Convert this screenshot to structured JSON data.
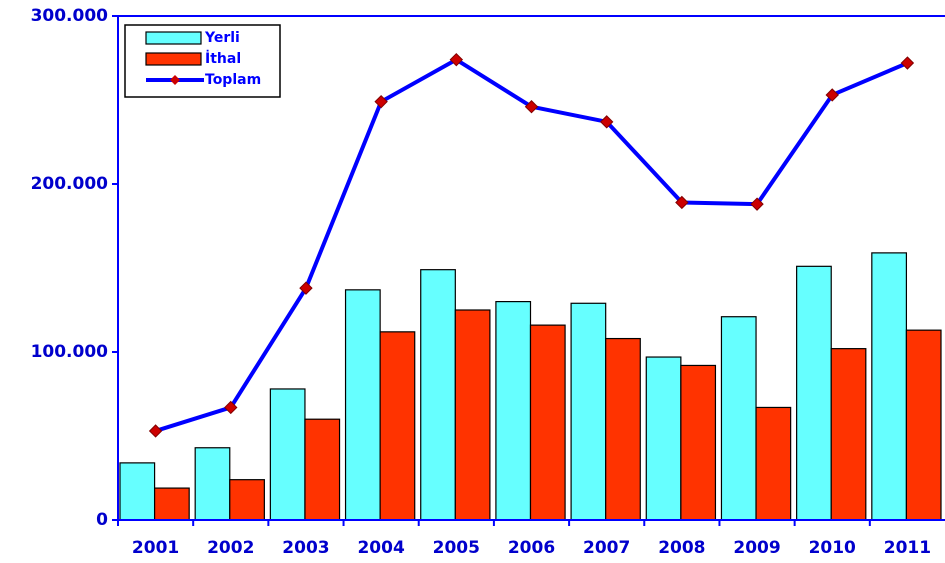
{
  "chart_data": {
    "type": "bar",
    "categories": [
      "2001",
      "2002",
      "2003",
      "2004",
      "2005",
      "2006",
      "2007",
      "2008",
      "2009",
      "2010",
      "2011"
    ],
    "series": [
      {
        "name": "Yerli",
        "color": "#66ffff",
        "values": [
          34000,
          43000,
          78000,
          137000,
          149000,
          130000,
          129000,
          97000,
          121000,
          151000,
          159000
        ]
      },
      {
        "name": "İthal",
        "color": "#ff3300",
        "values": [
          19000,
          24000,
          60000,
          112000,
          125000,
          116000,
          108000,
          92000,
          67000,
          102000,
          113000
        ]
      },
      {
        "name": "Toplam",
        "type": "line",
        "color": "#0000ff",
        "marker_color": "#cc0000",
        "values": [
          53000,
          67000,
          138000,
          249000,
          274000,
          246000,
          237000,
          189000,
          188000,
          253000,
          272000
        ]
      }
    ],
    "ylim": [
      0,
      300000
    ],
    "yticks": [
      0,
      {
        "value": 100000,
        "label": "100.000"
      },
      {
        "value": 200000,
        "label": "200.000"
      },
      {
        "value": 300000,
        "label": "300.000"
      }
    ],
    "legend": "upper left",
    "grid": false
  }
}
